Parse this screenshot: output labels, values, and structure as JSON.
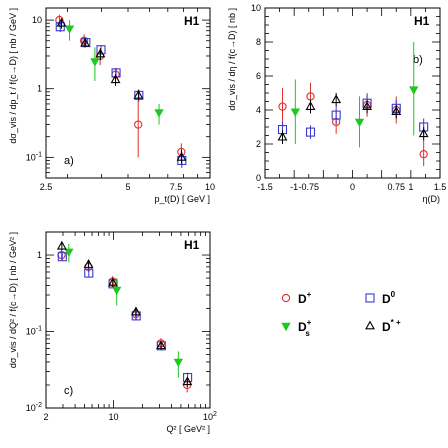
{
  "colors": {
    "Dplus": "#e0302a",
    "D0": "#3a3ad0",
    "Ds": "#1fc81f",
    "Dstar": "#000000"
  },
  "legend": {
    "items": [
      {
        "key": "Dplus",
        "label": "D",
        "sup": "+",
        "marker": "circle"
      },
      {
        "key": "D0",
        "label": "D",
        "sup": "0",
        "marker": "square"
      },
      {
        "key": "Ds",
        "label": "D",
        "sup": "+",
        "sub": "s",
        "marker": "tri-down"
      },
      {
        "key": "Dstar",
        "label": "D",
        "sup": "* +",
        "marker": "tri-up"
      }
    ]
  },
  "chart_data": [
    {
      "id": "a",
      "type": "scatter",
      "tag": "a)",
      "logo": "H1",
      "xscale": "log",
      "yscale": "log",
      "xlim": [
        2.5,
        10
      ],
      "ylim": [
        0.05,
        15
      ],
      "xticks": [
        {
          "v": 2.5,
          "label": "2.5"
        },
        {
          "v": 5,
          "label": "5"
        },
        {
          "v": 7.5,
          "label": "7.5"
        },
        {
          "v": 10,
          "label": "10"
        }
      ],
      "yticks": [
        {
          "v": 0.1,
          "label": "10",
          "sup": "-1"
        },
        {
          "v": 1,
          "label": "1"
        },
        {
          "v": 10,
          "label": "10"
        }
      ],
      "xlabel": "p_t(D)  [ GeV ]",
      "ylabel": "dσ_vis / dp_t / f(c→D)  [ nb / GeV ]",
      "series": [
        {
          "key": "Dplus",
          "points": [
            {
              "x": 2.8,
              "y": 10,
              "lo": 8,
              "hi": 12
            },
            {
              "x": 3.45,
              "y": 5,
              "lo": 4,
              "hi": 6.2
            },
            {
              "x": 3.95,
              "y": 3,
              "lo": 2.2,
              "hi": 3.8
            },
            {
              "x": 4.5,
              "y": 1.6,
              "lo": 1.2,
              "hi": 2.0
            },
            {
              "x": 5.45,
              "y": 0.3,
              "lo": 0.1,
              "hi": 0.7
            },
            {
              "x": 7.85,
              "y": 0.12,
              "lo": 0.09,
              "hi": 0.16
            }
          ]
        },
        {
          "key": "D0",
          "points": [
            {
              "x": 2.82,
              "y": 8,
              "lo": 6.7,
              "hi": 9.5
            },
            {
              "x": 3.5,
              "y": 4.7,
              "lo": 4.1,
              "hi": 5.4
            },
            {
              "x": 3.98,
              "y": 3.7,
              "lo": 3.1,
              "hi": 4.3
            },
            {
              "x": 4.52,
              "y": 1.7,
              "lo": 1.45,
              "hi": 2.0
            },
            {
              "x": 5.48,
              "y": 0.8,
              "lo": 0.65,
              "hi": 0.98
            },
            {
              "x": 7.88,
              "y": 0.09,
              "lo": 0.07,
              "hi": 0.12
            }
          ]
        },
        {
          "key": "Ds",
          "points": [
            {
              "x": 3.05,
              "y": 7.5,
              "lo": 5,
              "hi": 10
            },
            {
              "x": 3.78,
              "y": 2.5,
              "lo": 1.3,
              "hi": 4
            },
            {
              "x": 6.5,
              "y": 0.45,
              "lo": 0.3,
              "hi": 0.6
            }
          ]
        },
        {
          "key": "Dstar",
          "points": [
            {
              "x": 2.85,
              "y": 9,
              "lo": 7.5,
              "hi": 10.5
            },
            {
              "x": 3.48,
              "y": 4.6,
              "lo": 4.0,
              "hi": 5.2
            },
            {
              "x": 3.96,
              "y": 3.2,
              "lo": 2.6,
              "hi": 3.9
            },
            {
              "x": 4.5,
              "y": 1.35,
              "lo": 1.1,
              "hi": 1.6
            },
            {
              "x": 5.46,
              "y": 0.8,
              "lo": 0.7,
              "hi": 0.95
            },
            {
              "x": 7.86,
              "y": 0.1,
              "lo": 0.08,
              "hi": 0.13
            }
          ]
        }
      ]
    },
    {
      "id": "b",
      "type": "scatter",
      "tag": "b)",
      "logo": "H1",
      "xscale": "linear",
      "yscale": "linear",
      "xlim": [
        -1.5,
        1.5
      ],
      "ylim": [
        0,
        10
      ],
      "xticks": [
        {
          "v": -1.5,
          "label": "-1.5"
        },
        {
          "v": -1,
          "label": "-1"
        },
        {
          "v": -0.75,
          "label": "-0.75"
        },
        {
          "v": 0,
          "label": "0"
        },
        {
          "v": 0.75,
          "label": "0.75"
        },
        {
          "v": 1,
          "label": "1"
        },
        {
          "v": 1.5,
          "label": "1.5"
        }
      ],
      "yticks": [
        {
          "v": 0,
          "label": "0"
        },
        {
          "v": 2,
          "label": "2"
        },
        {
          "v": 4,
          "label": "4"
        },
        {
          "v": 6,
          "label": "6"
        },
        {
          "v": 8,
          "label": "8"
        },
        {
          "v": 10,
          "label": "10"
        }
      ],
      "xlabel": "η(D)",
      "ylabel": "dσ_vis / dη / f(c→D)  [ nb ]",
      "series": [
        {
          "key": "Dplus",
          "points": [
            {
              "x": -1.2,
              "y": 4.2,
              "lo": 3.0,
              "hi": 5.3
            },
            {
              "x": -0.72,
              "y": 4.8,
              "lo": 4.0,
              "hi": 5.6
            },
            {
              "x": -0.28,
              "y": 3.3,
              "lo": 2.6,
              "hi": 4.0
            },
            {
              "x": 0.25,
              "y": 4.3,
              "lo": 3.6,
              "hi": 5.0
            },
            {
              "x": 0.75,
              "y": 4.0,
              "lo": 3.2,
              "hi": 4.8
            },
            {
              "x": 1.22,
              "y": 1.4,
              "lo": 0.7,
              "hi": 2.2
            }
          ]
        },
        {
          "key": "D0",
          "points": [
            {
              "x": -1.2,
              "y": 2.85,
              "lo": 2.4,
              "hi": 3.3
            },
            {
              "x": -0.72,
              "y": 2.7,
              "lo": 2.3,
              "hi": 3.1
            },
            {
              "x": -0.28,
              "y": 3.7,
              "lo": 3.2,
              "hi": 4.2
            },
            {
              "x": 0.25,
              "y": 4.4,
              "lo": 3.9,
              "hi": 4.9
            },
            {
              "x": 0.75,
              "y": 4.1,
              "lo": 3.6,
              "hi": 4.6
            },
            {
              "x": 1.22,
              "y": 3.0,
              "lo": 2.5,
              "hi": 3.5
            }
          ]
        },
        {
          "key": "Ds",
          "points": [
            {
              "x": -0.98,
              "y": 3.9,
              "lo": 2.0,
              "hi": 5.8
            },
            {
              "x": 0.12,
              "y": 3.3,
              "lo": 1.8,
              "hi": 4.8
            },
            {
              "x": 1.05,
              "y": 5.2,
              "lo": 2.5,
              "hi": 8.0
            }
          ]
        },
        {
          "key": "Dstar",
          "points": [
            {
              "x": -1.2,
              "y": 2.4,
              "lo": 2.0,
              "hi": 2.8
            },
            {
              "x": -0.72,
              "y": 4.2,
              "lo": 3.8,
              "hi": 4.6
            },
            {
              "x": -0.28,
              "y": 4.6,
              "lo": 4.2,
              "hi": 5.0
            },
            {
              "x": 0.25,
              "y": 4.2,
              "lo": 3.8,
              "hi": 4.6
            },
            {
              "x": 0.75,
              "y": 3.9,
              "lo": 3.5,
              "hi": 4.3
            },
            {
              "x": 1.22,
              "y": 2.6,
              "lo": 2.2,
              "hi": 3.0
            }
          ]
        }
      ]
    },
    {
      "id": "c",
      "type": "scatter",
      "tag": "c)",
      "logo": "H1",
      "xscale": "log",
      "yscale": "log",
      "xlim": [
        2,
        100
      ],
      "ylim": [
        0.01,
        2
      ],
      "xticks": [
        {
          "v": 2,
          "label": "2"
        },
        {
          "v": 10,
          "label": "10"
        },
        {
          "v": 100,
          "label": "10",
          "sup": "2"
        }
      ],
      "yticks": [
        {
          "v": 0.01,
          "label": "10",
          "sup": "-2"
        },
        {
          "v": 0.1,
          "label": "10",
          "sup": "-1"
        },
        {
          "v": 1,
          "label": "1"
        }
      ],
      "xlabel": "Q² [ GeV² ]",
      "ylabel": "dσ_vis / dQ² / f(c→D)  [ nb / GeV² ]",
      "series": [
        {
          "key": "Dplus",
          "points": [
            {
              "x": 2.9,
              "y": 1.0,
              "lo": 0.85,
              "hi": 1.15
            },
            {
              "x": 5.5,
              "y": 0.7,
              "lo": 0.6,
              "hi": 0.82
            },
            {
              "x": 9.8,
              "y": 0.45,
              "lo": 0.38,
              "hi": 0.53
            },
            {
              "x": 17,
              "y": 0.17,
              "lo": 0.14,
              "hi": 0.2
            },
            {
              "x": 31,
              "y": 0.07,
              "lo": 0.058,
              "hi": 0.082
            },
            {
              "x": 58,
              "y": 0.02,
              "lo": 0.016,
              "hi": 0.025
            }
          ]
        },
        {
          "key": "D0",
          "points": [
            {
              "x": 2.95,
              "y": 0.95,
              "lo": 0.85,
              "hi": 1.05
            },
            {
              "x": 5.55,
              "y": 0.58,
              "lo": 0.52,
              "hi": 0.65
            },
            {
              "x": 9.9,
              "y": 0.42,
              "lo": 0.37,
              "hi": 0.47
            },
            {
              "x": 17.2,
              "y": 0.16,
              "lo": 0.14,
              "hi": 0.18
            },
            {
              "x": 31.3,
              "y": 0.065,
              "lo": 0.057,
              "hi": 0.074
            },
            {
              "x": 58.6,
              "y": 0.025,
              "lo": 0.022,
              "hi": 0.029
            }
          ]
        },
        {
          "key": "Ds",
          "points": [
            {
              "x": 3.45,
              "y": 1.1,
              "lo": 0.8,
              "hi": 1.4
            },
            {
              "x": 10.8,
              "y": 0.35,
              "lo": 0.22,
              "hi": 0.5
            },
            {
              "x": 47,
              "y": 0.04,
              "lo": 0.025,
              "hi": 0.055
            }
          ]
        },
        {
          "key": "Dstar",
          "points": [
            {
              "x": 2.92,
              "y": 1.3,
              "lo": 1.15,
              "hi": 1.45
            },
            {
              "x": 5.52,
              "y": 0.75,
              "lo": 0.67,
              "hi": 0.83
            },
            {
              "x": 9.85,
              "y": 0.43,
              "lo": 0.38,
              "hi": 0.48
            },
            {
              "x": 17.1,
              "y": 0.18,
              "lo": 0.16,
              "hi": 0.2
            },
            {
              "x": 31.1,
              "y": 0.065,
              "lo": 0.058,
              "hi": 0.073
            },
            {
              "x": 58.3,
              "y": 0.022,
              "lo": 0.019,
              "hi": 0.025
            }
          ]
        }
      ]
    }
  ]
}
